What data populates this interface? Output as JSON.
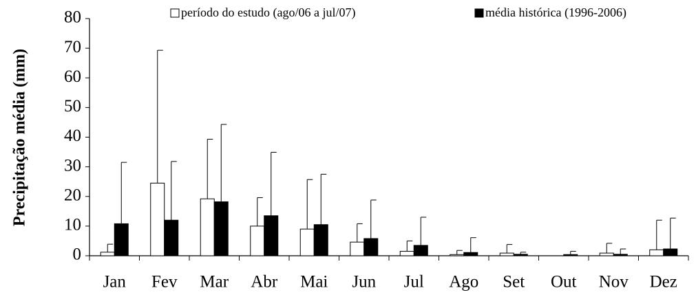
{
  "chart_data": {
    "type": "bar",
    "ylabel": "Precipitação média (mm)",
    "categories": [
      "Jan",
      "Fev",
      "Mar",
      "Abr",
      "Mai",
      "Jun",
      "Jul",
      "Ago",
      "Set",
      "Out",
      "Nov",
      "Dez"
    ],
    "series": [
      {
        "name": "período do estudo (ago/06 a jul/07)",
        "color": "#ffffff",
        "values": [
          1.2,
          24.5,
          19.2,
          10,
          9,
          4.6,
          1.5,
          0.4,
          0.9,
          0,
          0.9,
          2
        ],
        "errors": [
          2.7,
          44.8,
          20.1,
          9.6,
          16.7,
          6.2,
          3.5,
          1.4,
          2.9,
          0,
          3.3,
          10
        ]
      },
      {
        "name": "média histórica (1996-2006)",
        "color": "#000000",
        "values": [
          10.8,
          12,
          18.2,
          13.5,
          10.5,
          5.8,
          3.5,
          1.1,
          0.5,
          0.4,
          0.5,
          2.3
        ],
        "errors": [
          20.7,
          19.8,
          26.1,
          21.4,
          17,
          13,
          9.5,
          5,
          0.7,
          1.1,
          1.8,
          10.4
        ]
      }
    ],
    "ylim": [
      0,
      80
    ],
    "yticks": [
      0,
      10,
      20,
      30,
      40,
      50,
      60,
      70,
      80
    ],
    "grid": false
  }
}
